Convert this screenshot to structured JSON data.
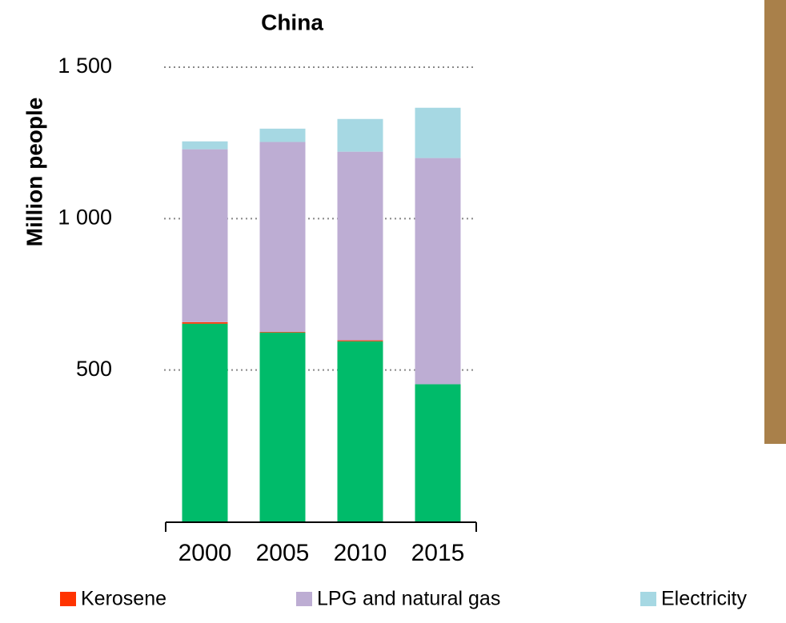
{
  "chart_data": {
    "type": "stacked_bar",
    "title": "China",
    "y_label": "Million people",
    "categories": [
      "2000",
      "2005",
      "2010",
      "2015"
    ],
    "series": [
      {
        "color": "#00bb6a",
        "values": [
          653,
          624,
          595,
          453
        ]
      },
      {
        "name": "Kerosene",
        "color": "#ff3300",
        "values": [
          5,
          2,
          3,
          0
        ]
      },
      {
        "name": "LPG and natural gas",
        "color": "#bdadd3",
        "values": [
          571,
          627,
          623,
          747
        ]
      },
      {
        "name": "Electricity",
        "color": "#a6d8e3",
        "values": [
          26,
          44,
          108,
          166
        ]
      }
    ],
    "ylim": [
      0,
      1500
    ],
    "yticks": [
      500,
      {
        "value": 1000,
        "label": "1 000"
      },
      {
        "value": 1500,
        "label": "1 500"
      }
    ],
    "grid": true
  }
}
